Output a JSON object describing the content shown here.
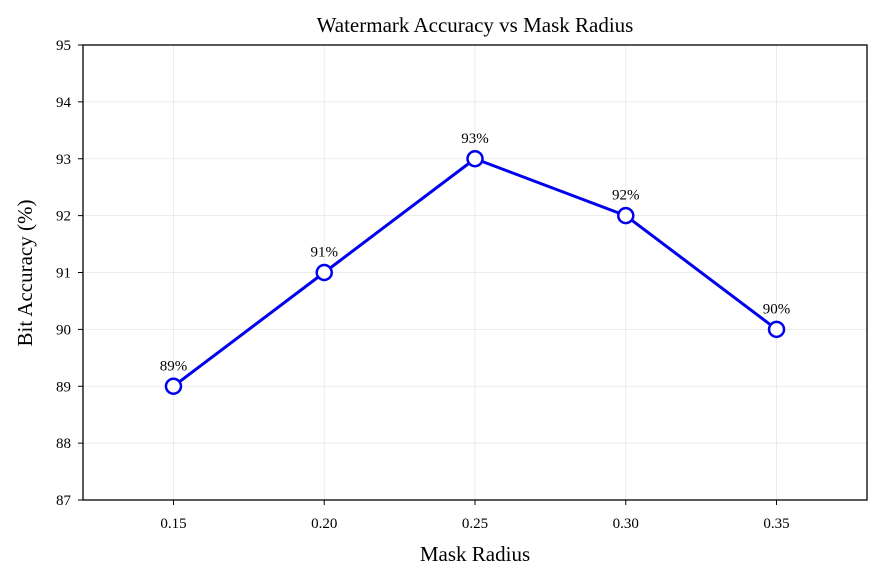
{
  "chart_data": {
    "type": "line",
    "title": "Watermark Accuracy vs Mask Radius",
    "xlabel": "Mask Radius",
    "ylabel": "Bit Accuracy (%)",
    "x": [
      0.15,
      0.2,
      0.25,
      0.3,
      0.35
    ],
    "x_tick_labels": [
      "0.15",
      "0.20",
      "0.25",
      "0.30",
      "0.35"
    ],
    "xlim": [
      0.12,
      0.38
    ],
    "ylim": [
      87,
      95
    ],
    "y_ticks": [
      87,
      88,
      89,
      90,
      91,
      92,
      93,
      94,
      95
    ],
    "y_tick_labels": [
      "87",
      "88",
      "89",
      "90",
      "91",
      "92",
      "93",
      "94",
      "95"
    ],
    "series": [
      {
        "values": [
          89,
          91,
          93,
          92,
          90
        ],
        "labels": [
          "89%",
          "91%",
          "93%",
          "92%",
          "90%"
        ],
        "color": "#0000ee",
        "marker": "open-circle"
      }
    ],
    "grid": true,
    "legend": "none"
  }
}
